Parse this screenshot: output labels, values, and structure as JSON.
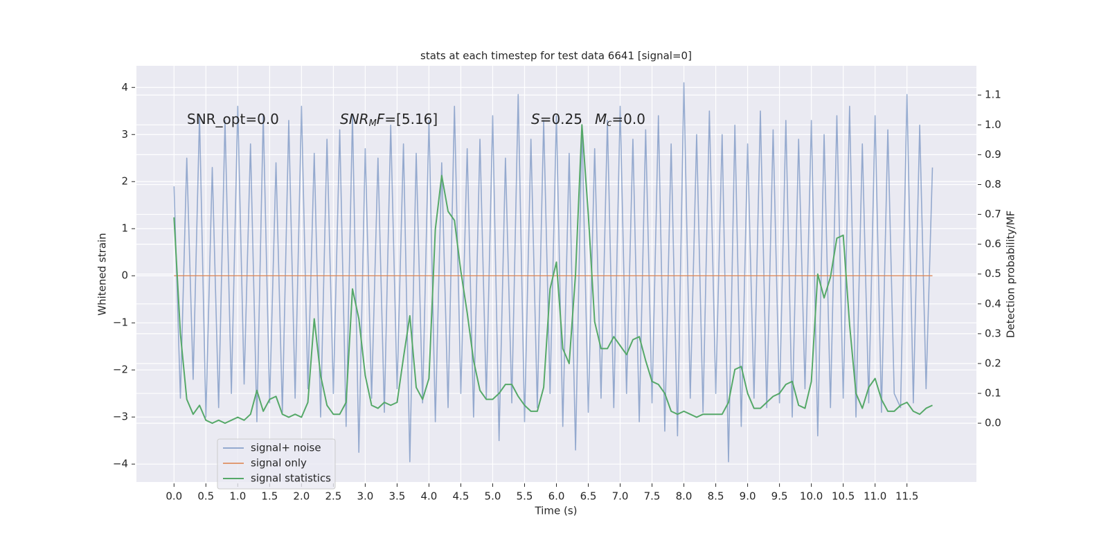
{
  "chart_data": {
    "type": "line",
    "title": "stats at each timestep for test data 6641 [signal=0]",
    "xlabel": "Time (s)",
    "ylabel": "Whitened strain",
    "y2label": "Detection probability/MF",
    "x": [
      0,
      0.1,
      0.2,
      0.3,
      0.4,
      0.5,
      0.6,
      0.7,
      0.8,
      0.9,
      1,
      1.1,
      1.2,
      1.3,
      1.4,
      1.5,
      1.6,
      1.7,
      1.8,
      1.9,
      2,
      2.1,
      2.2,
      2.3,
      2.4,
      2.5,
      2.6,
      2.7,
      2.8,
      2.9,
      3,
      3.1,
      3.2,
      3.3,
      3.4,
      3.5,
      3.6,
      3.7,
      3.8,
      3.9,
      4,
      4.1,
      4.2,
      4.3,
      4.4,
      4.5,
      4.6,
      4.7,
      4.8,
      4.9,
      5,
      5.1,
      5.2,
      5.3,
      5.4,
      5.5,
      5.6,
      5.7,
      5.8,
      5.9,
      6,
      6.1,
      6.2,
      6.3,
      6.4,
      6.5,
      6.6,
      6.7,
      6.8,
      6.9,
      7,
      7.1,
      7.2,
      7.3,
      7.4,
      7.5,
      7.6,
      7.7,
      7.8,
      7.9,
      8,
      8.1,
      8.2,
      8.3,
      8.4,
      8.5,
      8.6,
      8.7,
      8.8,
      8.9,
      9,
      9.1,
      9.2,
      9.3,
      9.4,
      9.5,
      9.6,
      9.7,
      9.8,
      9.9,
      10,
      10.1,
      10.2,
      10.3,
      10.4,
      10.5,
      10.6,
      10.7,
      10.8,
      10.9,
      11,
      11.1,
      11.2,
      11.3,
      11.4,
      11.5,
      11.6,
      11.7,
      11.8,
      11.9
    ],
    "series": [
      {
        "name": "signal+ noise",
        "color": "#4c72b0",
        "alpha": 0.55,
        "values": [
          1.9,
          -2.6,
          2.5,
          -2.2,
          3.4,
          -3.0,
          2.3,
          -2.8,
          3.3,
          -2.5,
          3.6,
          -2.3,
          2.8,
          -3.1,
          3.4,
          -2.7,
          2.4,
          -2.9,
          3.3,
          -2.6,
          3.6,
          -2.4,
          2.6,
          -3.0,
          2.9,
          -2.5,
          3.1,
          -3.2,
          3.4,
          -3.75,
          2.7,
          -2.6,
          2.5,
          -2.9,
          3.2,
          -2.4,
          2.8,
          -3.95,
          2.6,
          -2.7,
          3.3,
          -3.1,
          2.4,
          -2.8,
          3.6,
          -2.5,
          2.7,
          -3.0,
          2.9,
          -2.6,
          3.4,
          -3.5,
          2.5,
          -2.7,
          3.85,
          -3.1,
          2.9,
          -2.8,
          3.3,
          -2.5,
          3.4,
          -3.2,
          2.6,
          -3.7,
          3.2,
          -2.9,
          2.7,
          -2.6,
          3.3,
          -2.8,
          3.6,
          -2.5,
          2.9,
          -3.1,
          3.1,
          -2.7,
          3.4,
          -3.3,
          2.8,
          -3.4,
          4.1,
          -2.6,
          3.0,
          -2.9,
          3.5,
          -2.5,
          3.0,
          -3.95,
          3.2,
          -3.2,
          2.8,
          -2.6,
          3.5,
          -2.8,
          3.1,
          -2.7,
          3.3,
          -3.0,
          2.9,
          -2.4,
          3.3,
          -3.4,
          3.0,
          -2.8,
          3.4,
          -2.6,
          3.6,
          -3.0,
          2.8,
          -2.7,
          3.4,
          -2.9,
          3.1,
          -2.5,
          -2.8,
          3.85,
          -2.7,
          3.2,
          -2.4,
          2.3
        ]
      },
      {
        "name": "signal only",
        "color": "#dd8452",
        "alpha": 0.8,
        "x": [
          0,
          11.9
        ],
        "values": [
          0,
          0
        ]
      },
      {
        "name": "signal statistics",
        "color": "#55a868",
        "alpha": 1,
        "axis": "y2",
        "values": [
          0.69,
          0.3,
          0.08,
          0.03,
          0.06,
          0.01,
          0.0,
          0.01,
          0.0,
          0.01,
          0.02,
          0.01,
          0.03,
          0.11,
          0.04,
          0.08,
          0.09,
          0.03,
          0.02,
          0.03,
          0.02,
          0.07,
          0.35,
          0.16,
          0.06,
          0.03,
          0.03,
          0.07,
          0.45,
          0.35,
          0.16,
          0.06,
          0.05,
          0.07,
          0.06,
          0.07,
          0.22,
          0.36,
          0.12,
          0.08,
          0.15,
          0.65,
          0.83,
          0.71,
          0.68,
          0.51,
          0.37,
          0.21,
          0.11,
          0.08,
          0.08,
          0.1,
          0.13,
          0.13,
          0.09,
          0.06,
          0.04,
          0.04,
          0.12,
          0.45,
          0.54,
          0.25,
          0.2,
          0.5,
          1.0,
          0.7,
          0.34,
          0.25,
          0.25,
          0.29,
          0.26,
          0.23,
          0.28,
          0.29,
          0.21,
          0.14,
          0.13,
          0.1,
          0.04,
          0.03,
          0.04,
          0.03,
          0.02,
          0.03,
          0.03,
          0.03,
          0.03,
          0.07,
          0.18,
          0.19,
          0.1,
          0.05,
          0.05,
          0.07,
          0.09,
          0.1,
          0.13,
          0.14,
          0.06,
          0.05,
          0.14,
          0.5,
          0.42,
          0.49,
          0.62,
          0.63,
          0.33,
          0.1,
          0.05,
          0.12,
          0.15,
          0.08,
          0.04,
          0.04,
          0.06,
          0.07,
          0.04,
          0.03,
          0.05,
          0.06
        ]
      }
    ],
    "xlim": [
      -0.59,
      12.59
    ],
    "xticks": [
      {
        "value": 0,
        "label": "0.0"
      },
      0.5,
      {
        "value": 1,
        "label": "1.0"
      },
      1.5,
      {
        "value": 2,
        "label": "2.0"
      },
      2.5,
      {
        "value": 3,
        "label": "3.0"
      },
      3.5,
      {
        "value": 4,
        "label": "4.0"
      },
      4.5,
      {
        "value": 5,
        "label": "5.0"
      },
      5.5,
      {
        "value": 6,
        "label": "6.0"
      },
      6.5,
      {
        "value": 7,
        "label": "7.0"
      },
      7.5,
      {
        "value": 8,
        "label": "8.0"
      },
      8.5,
      {
        "value": 9,
        "label": "9.0"
      },
      9.5,
      {
        "value": 10,
        "label": "10.0"
      },
      10.5,
      {
        "value": 11,
        "label": "11.0"
      },
      11.5
    ],
    "ylim": [
      -4.38,
      4.46
    ],
    "yticks": [
      {
        "value": -4,
        "label": "−4"
      },
      {
        "value": -3,
        "label": "−3"
      },
      {
        "value": -2,
        "label": "−2"
      },
      {
        "value": -1,
        "label": "−1"
      },
      0,
      1,
      2,
      3,
      4
    ],
    "y2lim": [
      -0.197,
      1.198
    ],
    "y2ticks": [
      {
        "value": 0,
        "label": "0.0"
      },
      0.1,
      0.2,
      0.3,
      0.4,
      0.5,
      0.6,
      0.7,
      0.8,
      0.9,
      {
        "value": 1,
        "label": "1.0"
      },
      1.1
    ],
    "grid": true,
    "legend": "lower left",
    "annotations": [
      {
        "parts": [
          {
            "text": "SNR_opt=0.0"
          }
        ]
      },
      {
        "parts": [
          {
            "text": "SNR",
            "style": "italic"
          },
          {
            "text": "M",
            "style": "italic-sub"
          },
          {
            "text": "F",
            "style": "italic"
          },
          {
            "text": "=[5.16]"
          }
        ]
      },
      {
        "parts": [
          {
            "text": "S",
            "style": "italic"
          },
          {
            "text": "=0.25"
          }
        ]
      },
      {
        "parts": [
          {
            "text": "M",
            "style": "italic"
          },
          {
            "text": "c",
            "style": "italic-sub"
          },
          {
            "text": "=0.0"
          }
        ]
      }
    ]
  }
}
